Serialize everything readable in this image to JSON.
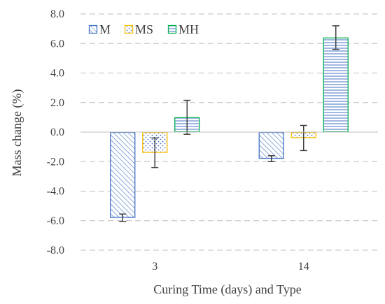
{
  "chart_data": {
    "type": "bar",
    "title": "",
    "xlabel": "Curing Time (days) and Type",
    "ylabel": "Mass change (%)",
    "categories": [
      "3",
      "14"
    ],
    "ylim": [
      -8.0,
      8.0
    ],
    "yticks": [
      "8.0",
      "6.0",
      "4.0",
      "2.0",
      "0.0",
      "-2.0",
      "-4.0",
      "-6.0",
      "-8.0"
    ],
    "grid": "horizontal dashed",
    "legend_position": "top-left",
    "series": [
      {
        "name": "M",
        "values": [
          -5.8,
          -1.8
        ],
        "error": [
          0.25,
          0.2
        ],
        "color": "#4472C4",
        "pattern": "diagonal-hatch"
      },
      {
        "name": "MS",
        "values": [
          -1.4,
          -0.4
        ],
        "error": [
          1.0,
          0.85
        ],
        "color": "#FFC000",
        "pattern": "dots"
      },
      {
        "name": "MH",
        "values": [
          1.0,
          6.4
        ],
        "error": [
          1.15,
          0.8
        ],
        "color": "#00B050",
        "pattern": "horizontal-lines"
      }
    ]
  }
}
